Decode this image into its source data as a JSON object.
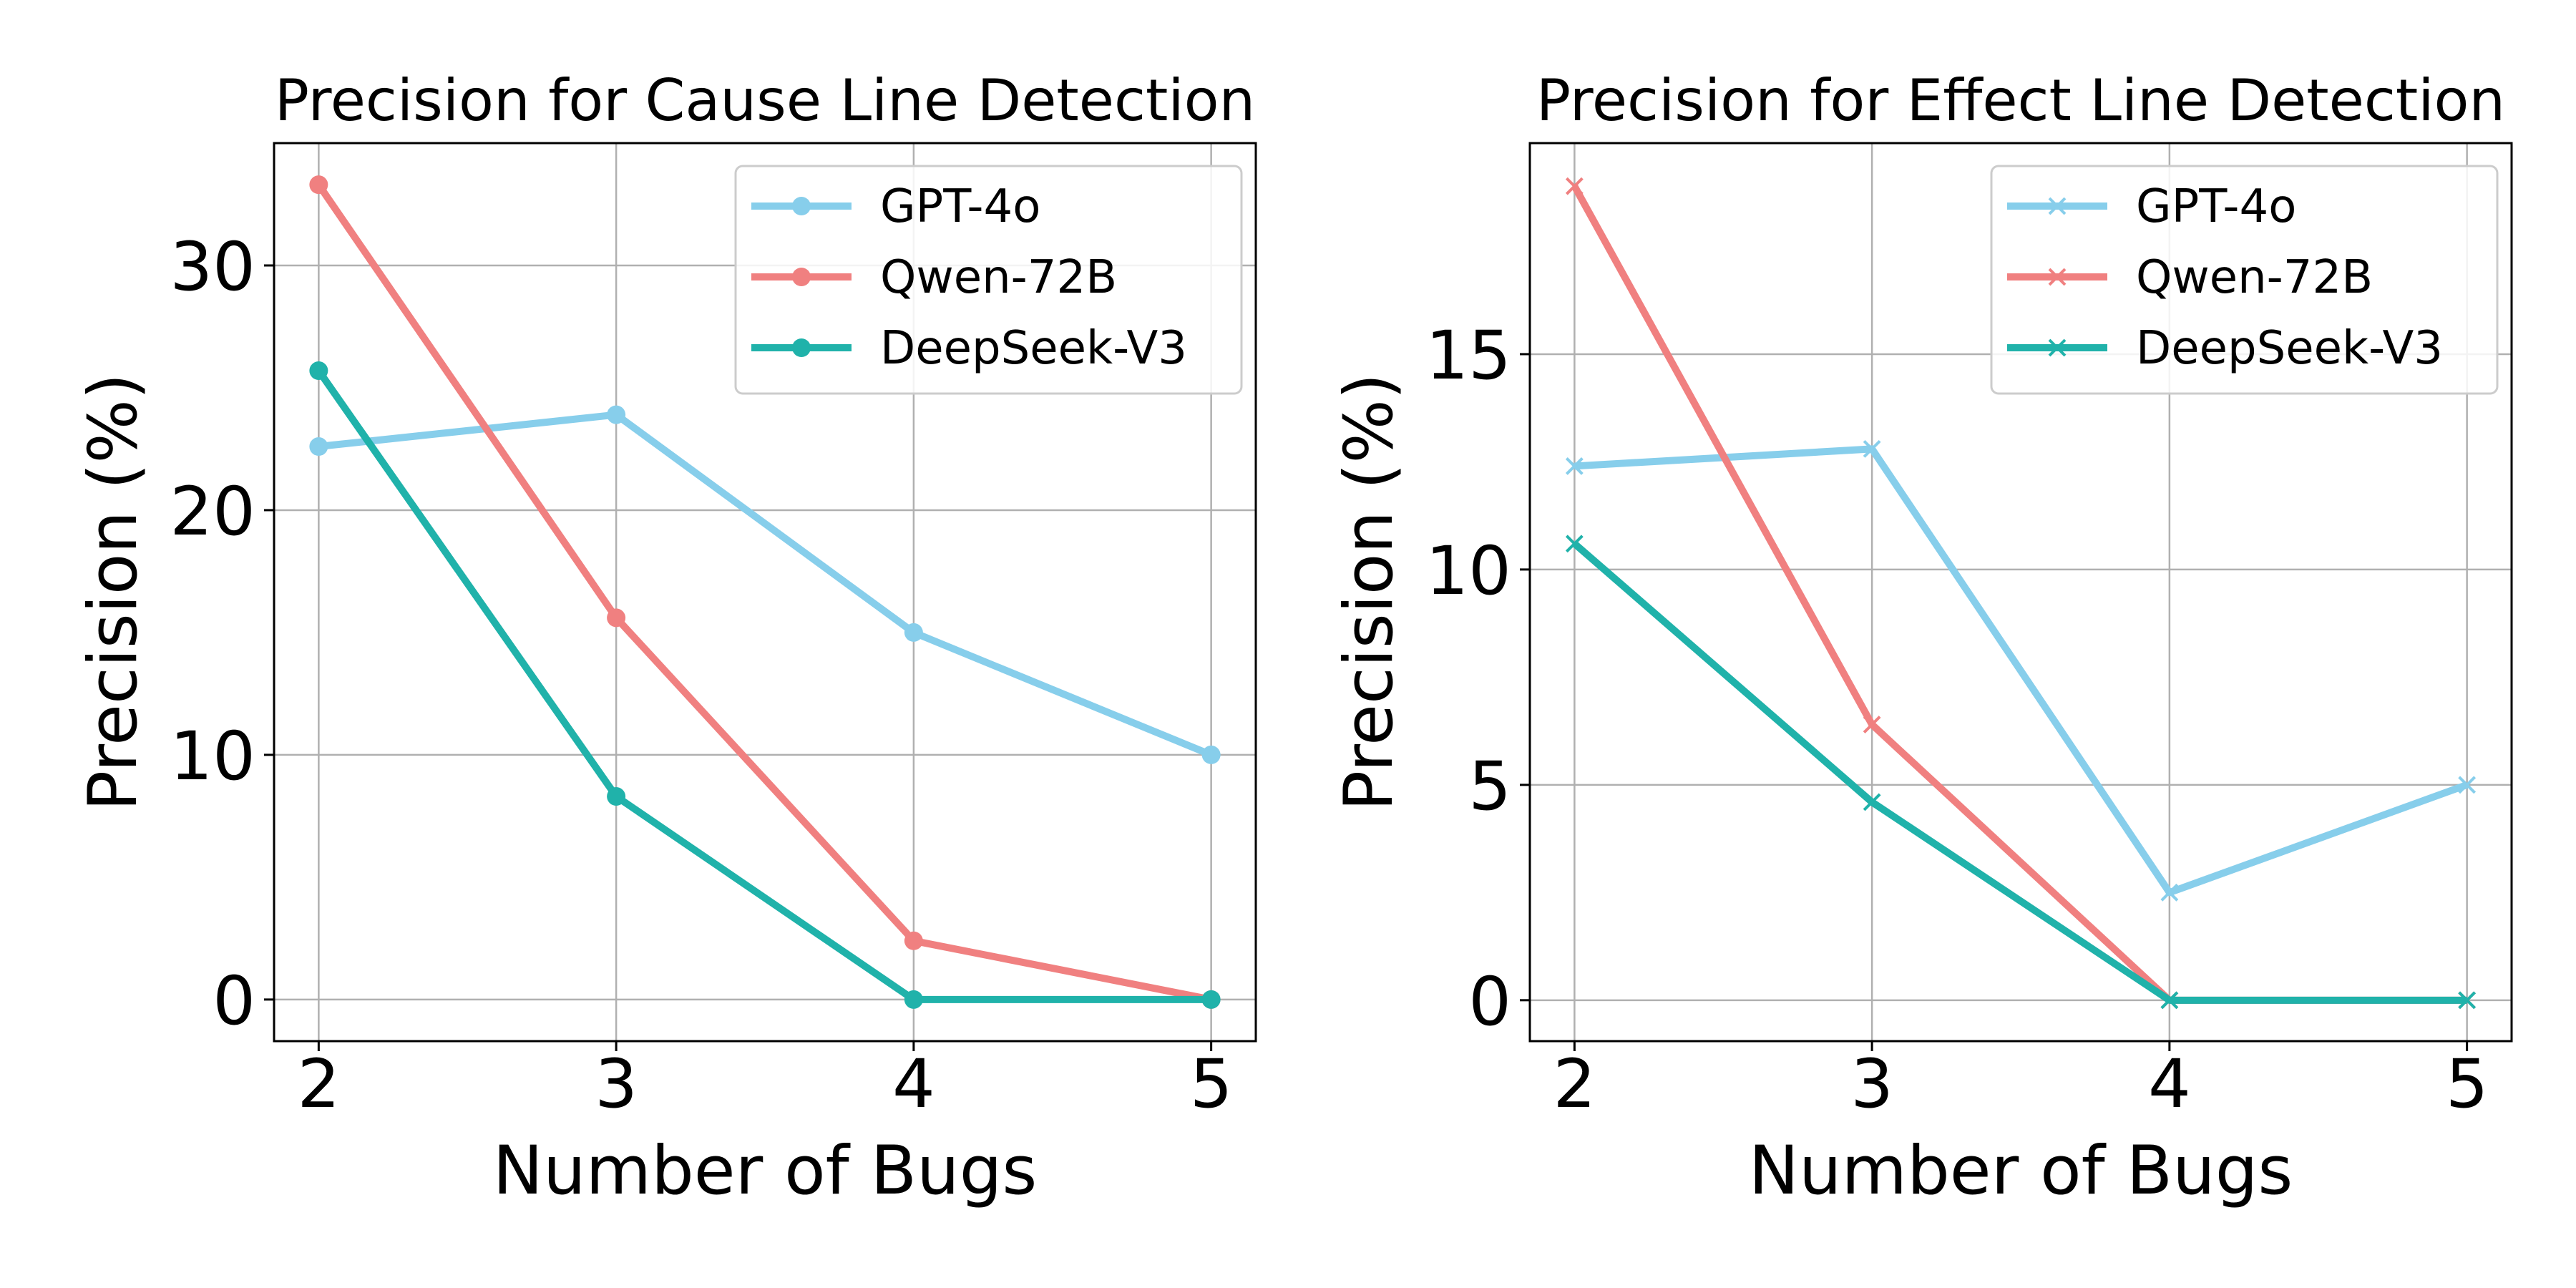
{
  "chart_data": [
    {
      "type": "line",
      "title": "Precision for Cause Line Detection",
      "xlabel": "Number of Bugs",
      "ylabel": "Precision (%)",
      "x": [
        2,
        3,
        4,
        5
      ],
      "xlim": [
        1.85,
        5.15
      ],
      "ylim": [
        -1.7,
        35
      ],
      "xticks": [
        "2",
        "3",
        "4",
        "5"
      ],
      "yticks": [
        "0",
        "10",
        "20",
        "30"
      ],
      "ytick_values": [
        0,
        10,
        20,
        30
      ],
      "grid": true,
      "legend_position": "top-right",
      "marker": "circle",
      "series": [
        {
          "name": "GPT-4o",
          "color": "#87ceeb",
          "values": [
            22.6,
            23.9,
            15.0,
            10.0
          ]
        },
        {
          "name": "Qwen-72B",
          "color": "#f08080",
          "values": [
            33.3,
            15.6,
            2.4,
            0.0
          ]
        },
        {
          "name": "DeepSeek-V3",
          "color": "#20b2aa",
          "values": [
            25.7,
            8.3,
            0.0,
            0.0
          ]
        }
      ]
    },
    {
      "type": "line",
      "title": "Precision for Effect Line Detection",
      "xlabel": "Number of Bugs",
      "ylabel": "Precision (%)",
      "x": [
        2,
        3,
        4,
        5
      ],
      "xlim": [
        1.85,
        5.15
      ],
      "ylim": [
        -0.95,
        19.9
      ],
      "xticks": [
        "2",
        "3",
        "4",
        "5"
      ],
      "yticks": [
        "0",
        "5",
        "10",
        "15"
      ],
      "ytick_values": [
        0,
        5,
        10,
        15
      ],
      "grid": true,
      "legend_position": "top-right",
      "marker": "x",
      "series": [
        {
          "name": "GPT-4o",
          "color": "#87ceeb",
          "values": [
            12.4,
            12.8,
            2.5,
            5.0
          ]
        },
        {
          "name": "Qwen-72B",
          "color": "#f08080",
          "values": [
            18.9,
            6.4,
            0.0,
            0.0
          ]
        },
        {
          "name": "DeepSeek-V3",
          "color": "#20b2aa",
          "values": [
            10.6,
            4.6,
            0.0,
            0.0
          ]
        }
      ]
    }
  ]
}
